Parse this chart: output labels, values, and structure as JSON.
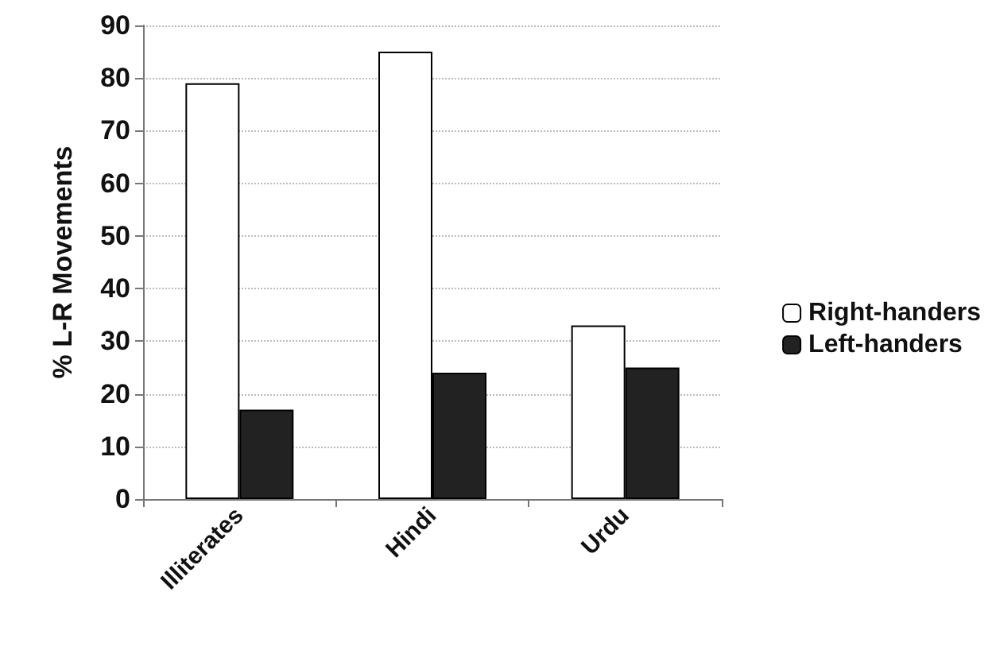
{
  "chart_data": {
    "type": "bar",
    "ylabel": "% L-R Movements",
    "categories": [
      "Illiterates",
      "Hindi",
      "Urdu"
    ],
    "series": [
      {
        "name": "Right-handers",
        "color": "#ffffff",
        "values": [
          79,
          85,
          33
        ]
      },
      {
        "name": "Left-handers",
        "color": "#222222",
        "values": [
          17,
          24,
          25
        ]
      }
    ],
    "ylim": [
      0,
      90
    ],
    "yticks": [
      0,
      10,
      20,
      30,
      40,
      50,
      60,
      70,
      80,
      90
    ],
    "grid": "y",
    "legend": "right"
  }
}
